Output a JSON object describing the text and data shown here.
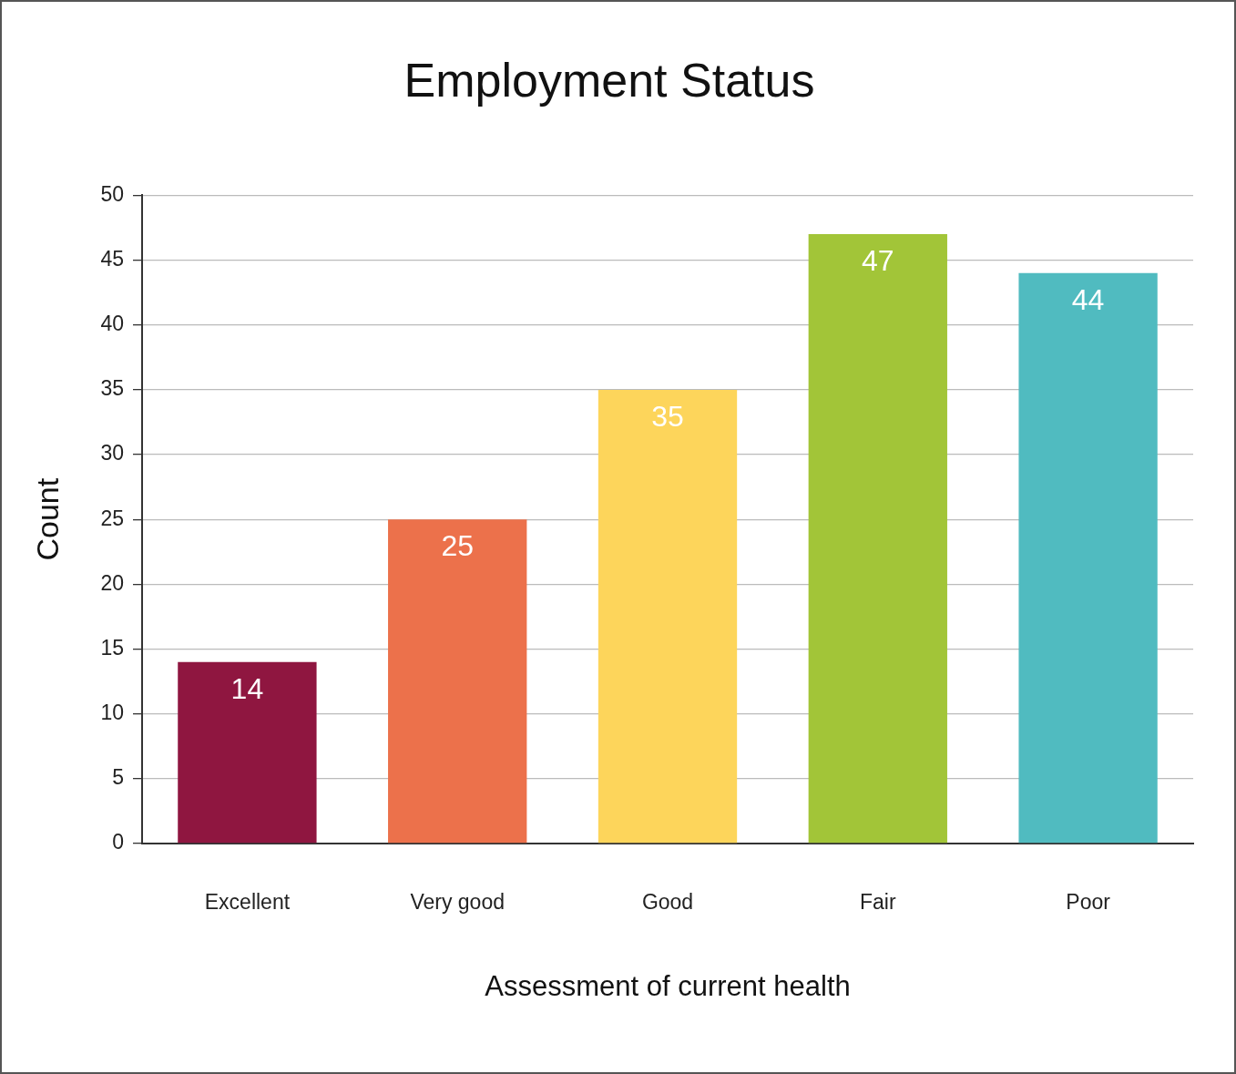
{
  "chart_data": {
    "type": "bar",
    "title": "Employment Status",
    "xlabel": "Assessment of current health",
    "ylabel": "Count",
    "categories": [
      "Excellent",
      "Very good",
      "Good",
      "Fair",
      "Poor"
    ],
    "values": [
      14,
      25,
      35,
      47,
      44
    ],
    "colors": [
      "#8f1640",
      "#ec714b",
      "#fdd55b",
      "#a2c538",
      "#50bbc0"
    ],
    "ylim": [
      0,
      50
    ],
    "yticks": [
      0,
      5,
      10,
      15,
      20,
      25,
      30,
      35,
      40,
      45,
      50
    ],
    "grid": "y",
    "data_labels": true
  }
}
